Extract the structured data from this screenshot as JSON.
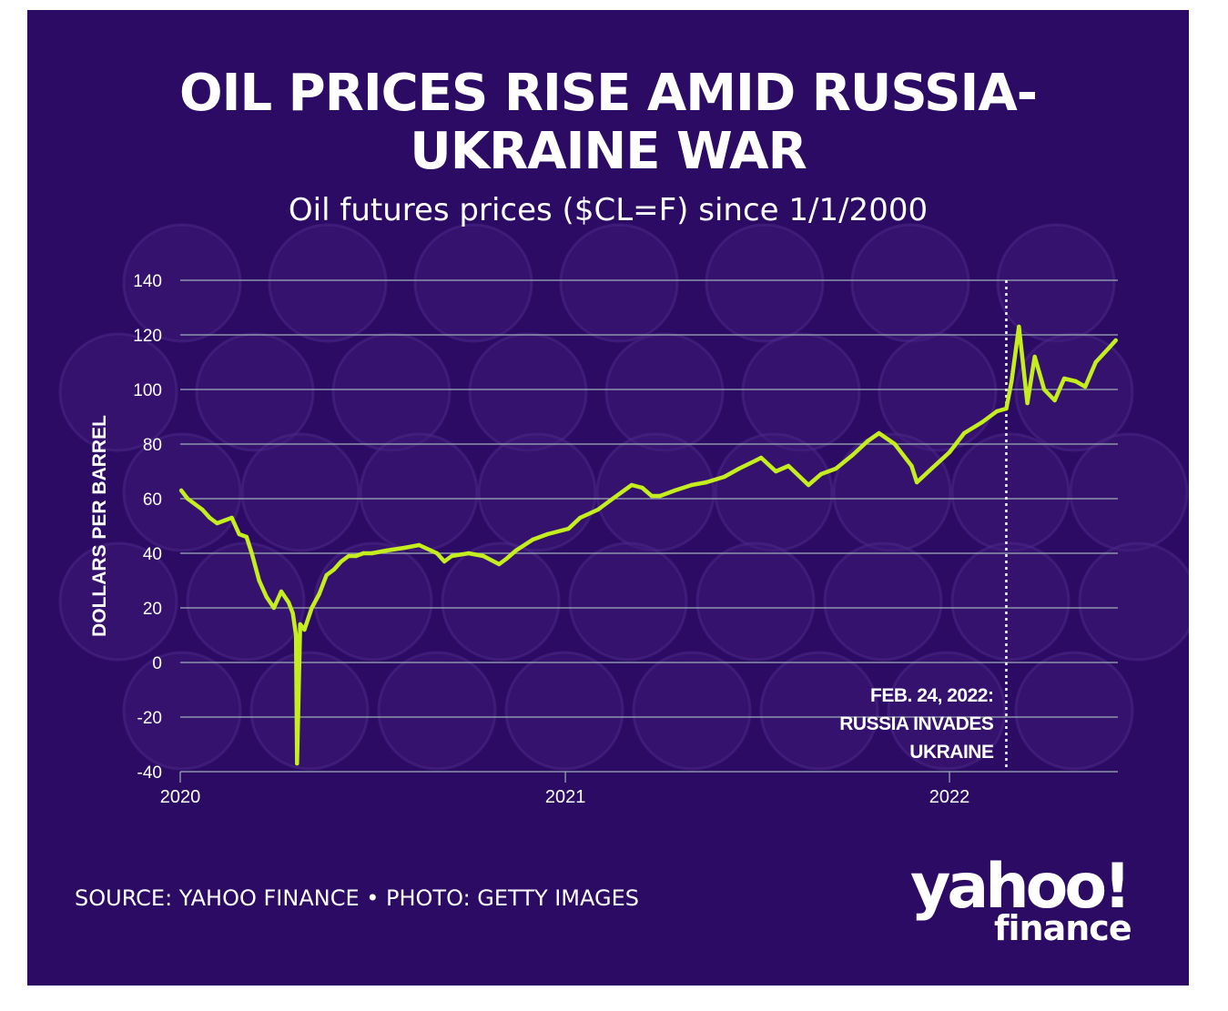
{
  "header": {
    "title_line1": "OIL PRICES RISE AMID RUSSIA-",
    "title_line2": "UKRAINE WAR",
    "subtitle": "Oil futures prices ($CL=F) since 1/1/2000"
  },
  "footer": {
    "source": "SOURCE: YAHOO FINANCE • PHOTO: GETTY IMAGES",
    "logo_word": "yahoo!",
    "logo_sub": "finance"
  },
  "colors": {
    "background": "#2c0b64",
    "line": "#c5ee1e",
    "grid": "#9fb0b8",
    "text": "#ffffff"
  },
  "chart_data": {
    "type": "line",
    "title": "OIL PRICES RISE AMID RUSSIA-UKRAINE WAR",
    "subtitle": "Oil futures prices ($CL=F) since 1/1/2000",
    "xlabel": "",
    "ylabel": "DOLLARS PER BARREL",
    "ylim": [
      -40,
      140
    ],
    "yticks": [
      140,
      120,
      100,
      80,
      60,
      40,
      20,
      0,
      -20,
      -40
    ],
    "ytick_labels": [
      "140",
      "120",
      "100",
      "80",
      "60",
      "40",
      "20",
      "0",
      "-20",
      "-40"
    ],
    "xticks": [
      "2020-01-01",
      "2021-01-01",
      "2022-01-01"
    ],
    "xtick_labels": [
      "2020",
      "2021",
      "2022"
    ],
    "xlim": [
      "2020-01-01",
      "2022-06-10"
    ],
    "grid": true,
    "legend": "none",
    "series": [
      {
        "x": [
          "2020-01-02",
          "2020-01-08",
          "2020-01-15",
          "2020-01-22",
          "2020-01-29",
          "2020-02-05",
          "2020-02-12",
          "2020-02-19",
          "2020-02-26",
          "2020-03-04",
          "2020-03-09",
          "2020-03-16",
          "2020-03-23",
          "2020-03-30",
          "2020-04-06",
          "2020-04-13",
          "2020-04-17",
          "2020-04-20",
          "2020-04-21",
          "2020-04-24",
          "2020-04-28",
          "2020-05-05",
          "2020-05-12",
          "2020-05-19",
          "2020-05-26",
          "2020-06-02",
          "2020-06-09",
          "2020-06-16",
          "2020-06-23",
          "2020-07-01",
          "2020-07-15",
          "2020-08-01",
          "2020-08-15",
          "2020-09-01",
          "2020-09-08",
          "2020-09-15",
          "2020-10-01",
          "2020-10-15",
          "2020-10-30",
          "2020-11-06",
          "2020-11-15",
          "2020-12-01",
          "2020-12-15",
          "2021-01-04",
          "2021-01-15",
          "2021-02-01",
          "2021-02-15",
          "2021-03-05",
          "2021-03-15",
          "2021-03-24",
          "2021-04-01",
          "2021-04-15",
          "2021-05-01",
          "2021-05-15",
          "2021-06-01",
          "2021-06-15",
          "2021-07-01",
          "2021-07-06",
          "2021-07-20",
          "2021-08-01",
          "2021-08-20",
          "2021-09-01",
          "2021-09-15",
          "2021-10-01",
          "2021-10-15",
          "2021-10-26",
          "2021-11-10",
          "2021-11-26",
          "2021-12-01",
          "2021-12-15",
          "2022-01-01",
          "2022-01-15",
          "2022-02-01",
          "2022-02-15",
          "2022-02-24",
          "2022-03-01",
          "2022-03-08",
          "2022-03-16",
          "2022-03-23",
          "2022-04-01",
          "2022-04-11",
          "2022-04-20",
          "2022-05-01",
          "2022-05-10",
          "2022-05-20",
          "2022-06-01",
          "2022-06-08"
        ],
        "values": [
          63,
          60,
          58,
          56,
          53,
          51,
          52,
          53,
          47,
          46,
          40,
          30,
          24,
          20,
          26,
          22,
          18,
          10,
          -37,
          14,
          12,
          20,
          25,
          32,
          34,
          37,
          39,
          39,
          40,
          40,
          41,
          42,
          43,
          40,
          37,
          39,
          40,
          39,
          36,
          38,
          41,
          45,
          47,
          49,
          53,
          56,
          60,
          65,
          64,
          61,
          61,
          63,
          65,
          66,
          68,
          71,
          74,
          75,
          70,
          72,
          65,
          69,
          71,
          76,
          81,
          84,
          80,
          72,
          66,
          71,
          77,
          84,
          88,
          92,
          93,
          103,
          123,
          95,
          112,
          100,
          96,
          104,
          103,
          101,
          110,
          115,
          118
        ]
      }
    ],
    "annotations": [
      {
        "x": "2022-02-24",
        "style": "dotted-vertical-line",
        "lines": [
          "FEB. 24, 2022:",
          "RUSSIA INVADES",
          "UKRAINE"
        ]
      }
    ]
  }
}
